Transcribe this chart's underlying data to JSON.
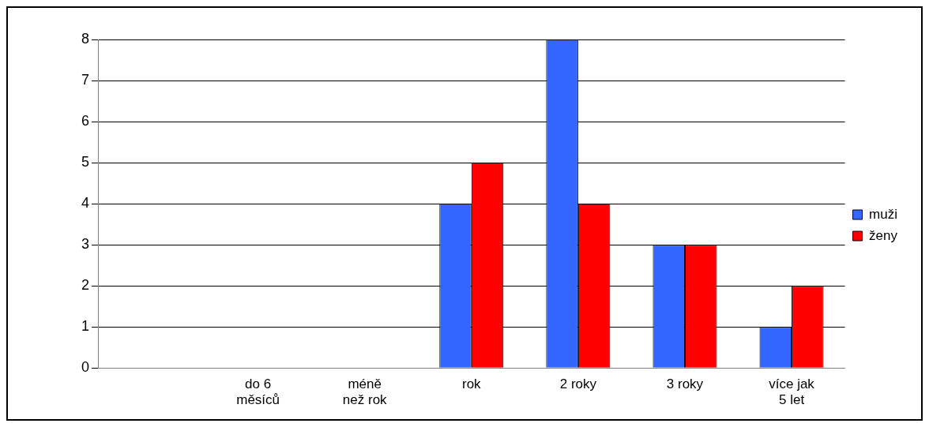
{
  "chart_data": {
    "type": "bar",
    "categories": [
      null,
      "do 6 měsíců",
      "méně než rok",
      "rok",
      "2 roky",
      "3 roky",
      "více jak 5 let"
    ],
    "series": [
      {
        "name": "muži",
        "color": "#3366ff",
        "values": [
          null,
          0,
          0,
          4,
          8,
          3,
          1
        ]
      },
      {
        "name": "ženy",
        "color": "#ff0000",
        "values": [
          null,
          0,
          0,
          5,
          4,
          3,
          2
        ]
      }
    ],
    "ylim": [
      0,
      8
    ],
    "yticks": [
      0,
      1,
      2,
      3,
      4,
      5,
      6,
      7,
      8
    ],
    "grid": "y",
    "legend": "right"
  }
}
